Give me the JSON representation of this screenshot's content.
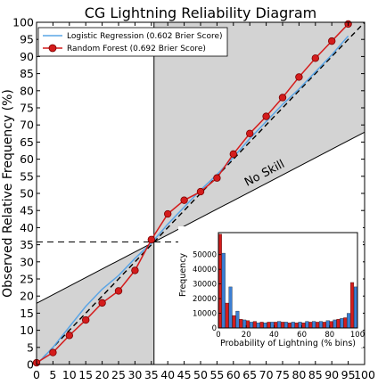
{
  "chart_data": [
    {
      "type": "line",
      "title": "CG Lightning Reliability Diagram",
      "xlabel": "",
      "ylabel": "Observed Relative Frequency (%)",
      "xlim": [
        0,
        100
      ],
      "ylim": [
        0,
        100
      ],
      "x_ticks": [
        "0",
        "5",
        "10",
        "15",
        "20",
        "25",
        "30",
        "35",
        "40",
        "45",
        "50",
        "55",
        "60",
        "65",
        "70",
        "75",
        "80",
        "85",
        "90",
        "95",
        "100"
      ],
      "y_ticks": [
        "0",
        "5",
        "10",
        "15",
        "20",
        "25",
        "30",
        "35",
        "40",
        "45",
        "50",
        "55",
        "60",
        "65",
        "70",
        "75",
        "80",
        "85",
        "90",
        "95",
        "100"
      ],
      "grid": false,
      "legend_position": "top-left",
      "reference_value": 35.8,
      "annotation": "No Skill",
      "colors": {
        "shade": "#d3d3d3",
        "logistic": "#5aa5e6",
        "forest": "#d41c1c",
        "forest_edge": "#7a0000"
      },
      "series": [
        {
          "name": "Logistic Regression (0.602 Brier Score)",
          "x": [
            0,
            5,
            10,
            15,
            20,
            25,
            30,
            35,
            40,
            45,
            50,
            55,
            60,
            65,
            70,
            75,
            80,
            85,
            90,
            95
          ],
          "y": [
            0,
            5,
            11,
            17,
            22,
            26,
            31,
            35.5,
            41,
            46,
            51,
            55.5,
            60.5,
            66,
            71,
            76,
            80.5,
            85.5,
            90.5,
            96
          ]
        },
        {
          "name": "Random Forest (0.692 Brier Score)",
          "x": [
            0,
            5,
            10,
            15,
            20,
            25,
            30,
            35,
            40,
            45,
            50,
            55,
            60,
            65,
            70,
            75,
            80,
            85,
            90,
            95
          ],
          "y": [
            0.5,
            3.5,
            8.5,
            13,
            18,
            21.5,
            27.5,
            36.5,
            44,
            48,
            50.5,
            54.5,
            61.5,
            67.5,
            72.5,
            78,
            84,
            89.5,
            94.5,
            99.5
          ]
        }
      ]
    },
    {
      "type": "bar",
      "title": "",
      "xlabel": "Probability of Lightning (% bins)",
      "ylabel": "Frequency",
      "xlim": [
        0,
        100
      ],
      "ylim": [
        0,
        65000
      ],
      "x_ticks": [
        "0",
        "20",
        "40",
        "60",
        "80",
        "100"
      ],
      "y_ticks": [
        "0",
        "10000",
        "20000",
        "30000",
        "40000",
        "50000"
      ],
      "categories": [
        0,
        5,
        10,
        15,
        20,
        25,
        30,
        35,
        40,
        45,
        50,
        55,
        60,
        65,
        70,
        75,
        80,
        85,
        90,
        95
      ],
      "series": [
        {
          "name": "",
          "color": "#d41c1c",
          "values": [
            64000,
            17000,
            8500,
            6000,
            5000,
            4500,
            4000,
            4000,
            4000,
            4000,
            3500,
            3500,
            3500,
            4000,
            4000,
            4000,
            4500,
            6000,
            7000,
            31000
          ]
        },
        {
          "name": "",
          "color": "#3b7fd4",
          "values": [
            51000,
            28000,
            11500,
            5500,
            4000,
            3500,
            3500,
            4000,
            4500,
            4000,
            4000,
            4000,
            4500,
            4500,
            4500,
            5000,
            5500,
            6500,
            10000,
            28000
          ]
        }
      ]
    }
  ]
}
